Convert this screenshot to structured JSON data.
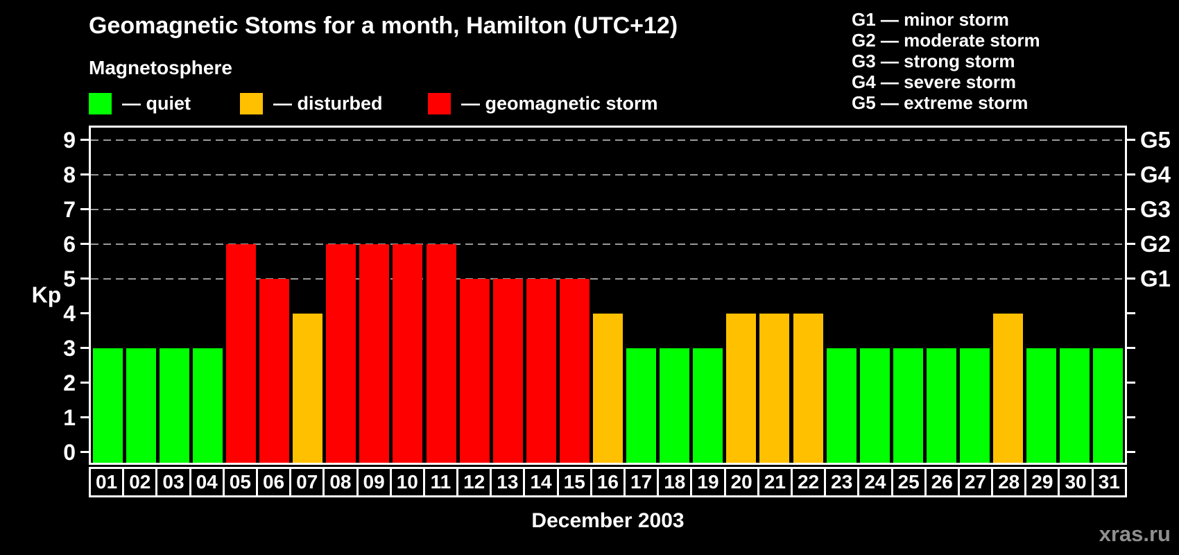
{
  "title": "Geomagnetic Stoms for a month, Hamilton (UTC+12)",
  "subtitle": "Magnetosphere",
  "watermark": "xras.ru",
  "legend": {
    "items": [
      {
        "label": "— quiet",
        "status": "quiet",
        "color": "#00ff00"
      },
      {
        "label": "— disturbed",
        "status": "disturbed",
        "color": "#ffc000"
      },
      {
        "label": "— geomagnetic storm",
        "status": "storm",
        "color": "#ff0000"
      }
    ]
  },
  "g_scale_legend": [
    "G1 — minor storm",
    "G2 — moderate storm",
    "G3 — strong storm",
    "G4 — severe storm",
    "G5 — extreme storm"
  ],
  "chart_data": {
    "type": "bar",
    "title": "Geomagnetic Stoms for a month, Hamilton (UTC+12)",
    "xlabel": "December 2003",
    "ylabel": "Kp",
    "ylim": [
      0,
      9
    ],
    "y_ticks": [
      0,
      1,
      2,
      3,
      4,
      5,
      6,
      7,
      8,
      9
    ],
    "gridlines": [
      5,
      6,
      7,
      8,
      9
    ],
    "grid_style": "dashed horizontal gray lines at Kp 5-9 only",
    "legend_position": "top-left",
    "right_axis": [
      {
        "value": 5,
        "label": "G1"
      },
      {
        "value": 6,
        "label": "G2"
      },
      {
        "value": 7,
        "label": "G3"
      },
      {
        "value": 8,
        "label": "G4"
      },
      {
        "value": 9,
        "label": "G5"
      }
    ],
    "categories": [
      "01",
      "02",
      "03",
      "04",
      "05",
      "06",
      "07",
      "08",
      "09",
      "10",
      "11",
      "12",
      "13",
      "14",
      "15",
      "16",
      "17",
      "18",
      "19",
      "20",
      "21",
      "22",
      "23",
      "24",
      "25",
      "26",
      "27",
      "28",
      "29",
      "30",
      "31"
    ],
    "values": [
      3,
      3,
      3,
      3,
      6,
      5,
      4,
      6,
      6,
      6,
      6,
      5,
      5,
      5,
      5,
      4,
      3,
      3,
      3,
      4,
      4,
      4,
      3,
      3,
      3,
      3,
      3,
      4,
      3,
      3,
      3
    ],
    "statuses": [
      "quiet",
      "quiet",
      "quiet",
      "quiet",
      "storm",
      "storm",
      "disturbed",
      "storm",
      "storm",
      "storm",
      "storm",
      "storm",
      "storm",
      "storm",
      "storm",
      "disturbed",
      "quiet",
      "quiet",
      "quiet",
      "disturbed",
      "disturbed",
      "disturbed",
      "quiet",
      "quiet",
      "quiet",
      "quiet",
      "quiet",
      "disturbed",
      "quiet",
      "quiet",
      "quiet"
    ],
    "colors": {
      "quiet": "#00ff00",
      "disturbed": "#ffc000",
      "storm": "#ff0000"
    }
  }
}
